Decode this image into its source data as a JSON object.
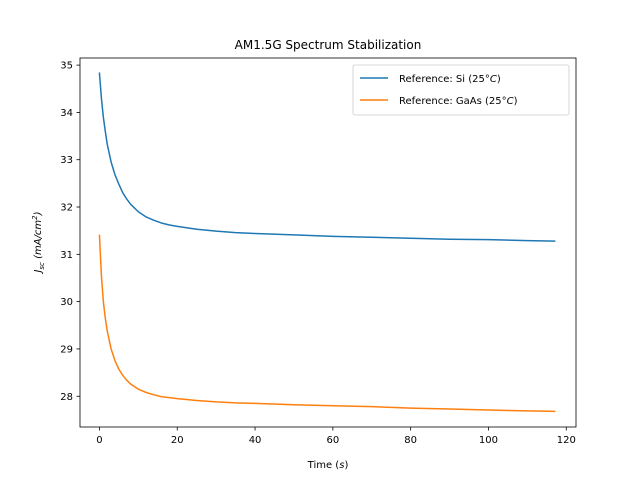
{
  "chart_data": {
    "type": "line",
    "title": "AM1.5G Spectrum Stabilization",
    "xlabel": {
      "base": "Time (",
      "italic": "s",
      "end": ")"
    },
    "ylabel": {
      "var": "J",
      "sub": "sc",
      "unit_open": " (mA/cm",
      "sup": "2",
      "unit_close": ")"
    },
    "xlim": [
      -5,
      122.5
    ],
    "ylim": [
      27.35,
      35.15
    ],
    "xticks": [
      0,
      20,
      40,
      60,
      80,
      100,
      120
    ],
    "yticks": [
      28,
      29,
      30,
      31,
      32,
      33,
      34,
      35
    ],
    "grid": false,
    "legend_position": "top-right",
    "series": [
      {
        "name": {
          "text": "Reference: Si (25",
          "unit": "°C",
          "close": ")"
        },
        "color": "#1f77b4",
        "x": [
          0,
          0.5,
          1,
          1.5,
          2,
          3,
          4,
          5,
          6,
          7,
          8,
          10,
          12,
          14,
          16,
          18,
          20,
          25,
          30,
          35,
          40,
          50,
          60,
          70,
          80,
          90,
          100,
          110,
          117
        ],
        "y": [
          34.83,
          34.3,
          33.9,
          33.6,
          33.33,
          32.95,
          32.68,
          32.48,
          32.3,
          32.17,
          32.06,
          31.9,
          31.79,
          31.72,
          31.66,
          31.62,
          31.59,
          31.53,
          31.49,
          31.46,
          31.44,
          31.41,
          31.38,
          31.36,
          31.34,
          31.32,
          31.31,
          31.29,
          31.28
        ]
      },
      {
        "name": {
          "text": "Reference: GaAs (25",
          "unit": "°C",
          "close": ")"
        },
        "color": "#ff7f0e",
        "x": [
          0,
          0.5,
          1,
          1.5,
          2,
          3,
          4,
          5,
          6,
          7,
          8,
          10,
          12,
          14,
          16,
          18,
          20,
          25,
          30,
          35,
          40,
          50,
          60,
          70,
          80,
          90,
          100,
          110,
          117
        ],
        "y": [
          31.4,
          30.55,
          30.0,
          29.65,
          29.38,
          29.0,
          28.75,
          28.57,
          28.44,
          28.34,
          28.26,
          28.15,
          28.08,
          28.03,
          27.99,
          27.97,
          27.95,
          27.91,
          27.88,
          27.86,
          27.85,
          27.82,
          27.8,
          27.78,
          27.75,
          27.73,
          27.71,
          27.69,
          27.68
        ]
      }
    ]
  }
}
